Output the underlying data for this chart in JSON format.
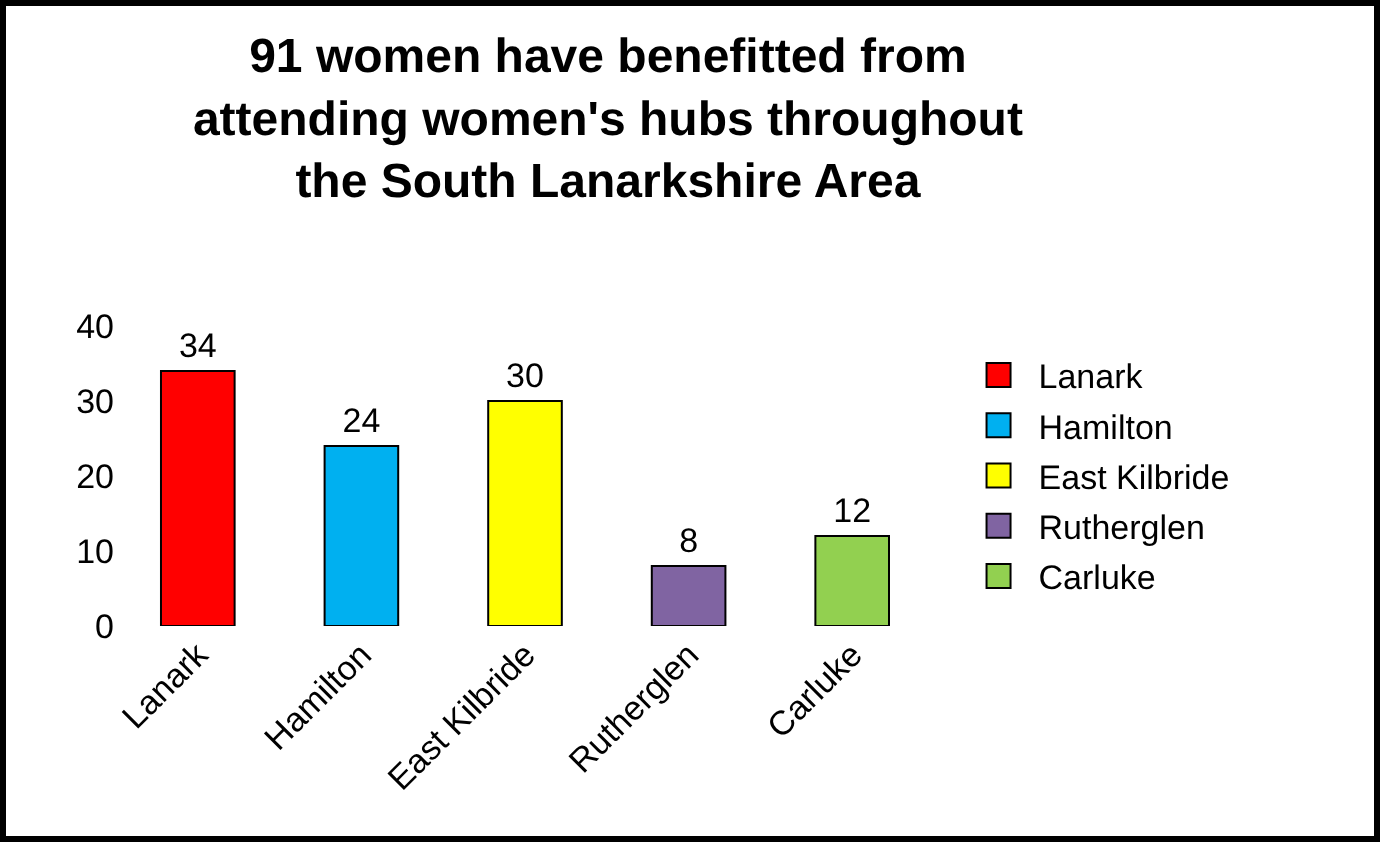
{
  "chart_data": {
    "type": "bar",
    "title": "91 women have benefitted from attending women's hubs throughout the South Lanarkshire Area",
    "categories": [
      "Lanark",
      "Hamilton",
      "East Kilbride",
      "Rutherglen",
      "Carluke"
    ],
    "series": [
      {
        "name": "Lanark",
        "color": "#ff0000",
        "values": [
          34,
          null,
          null,
          null,
          null
        ]
      },
      {
        "name": "Hamilton",
        "color": "#00b0f0",
        "values": [
          null,
          24,
          null,
          null,
          null
        ]
      },
      {
        "name": "East Kilbride",
        "color": "#ffff00",
        "values": [
          null,
          null,
          30,
          null,
          null
        ]
      },
      {
        "name": "Rutherglen",
        "color": "#8064a2",
        "values": [
          null,
          null,
          null,
          8,
          null
        ]
      },
      {
        "name": "Carluke",
        "color": "#92d050",
        "values": [
          null,
          null,
          null,
          null,
          12
        ]
      }
    ],
    "ylim": [
      0,
      40
    ],
    "yticks": [
      0,
      10,
      20,
      30,
      40
    ],
    "grid": false,
    "legend": "right",
    "data_labels": true
  }
}
